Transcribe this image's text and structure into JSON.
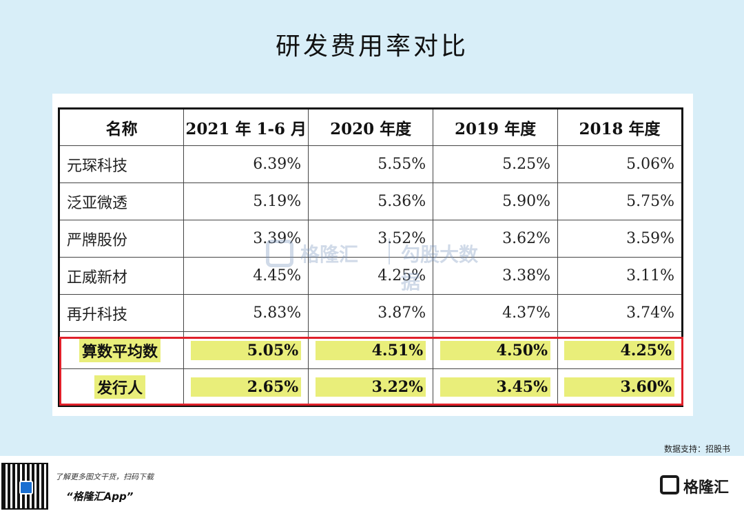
{
  "title": "研发费用率对比",
  "table": {
    "headers": [
      "名称",
      "2021 年 1-6 月",
      "2020 年度",
      "2019 年度",
      "2018 年度"
    ],
    "rows": [
      {
        "name": "元琛科技",
        "values": [
          "6.39%",
          "5.55%",
          "5.25%",
          "5.06%"
        ]
      },
      {
        "name": "泛亚微透",
        "values": [
          "5.19%",
          "5.36%",
          "5.90%",
          "5.75%"
        ]
      },
      {
        "name": "严牌股份",
        "values": [
          "3.39%",
          "3.52%",
          "3.62%",
          "3.59%"
        ]
      },
      {
        "name": "正威新材",
        "values": [
          "4.45%",
          "4.25%",
          "3.38%",
          "3.11%"
        ]
      },
      {
        "name": "再升科技",
        "values": [
          "5.83%",
          "3.87%",
          "4.37%",
          "3.74%"
        ]
      }
    ],
    "highlight_rows": [
      {
        "name": "算数平均数",
        "values": [
          "5.05%",
          "4.51%",
          "4.50%",
          "4.25%"
        ]
      },
      {
        "name": "发行人",
        "values": [
          "2.65%",
          "3.22%",
          "3.45%",
          "3.60%"
        ]
      }
    ]
  },
  "watermark": {
    "brand": "格隆汇",
    "sub": "勾股大数据"
  },
  "source": "数据支持：招股书",
  "footer": {
    "tagline": "了解更多图文干货，扫码下载",
    "app_name": "“格隆汇App”",
    "logo_text": "格隆汇"
  },
  "colors": {
    "highlight": "#e9ee7a",
    "box": "#e0202a",
    "background": "#d8eef8"
  }
}
